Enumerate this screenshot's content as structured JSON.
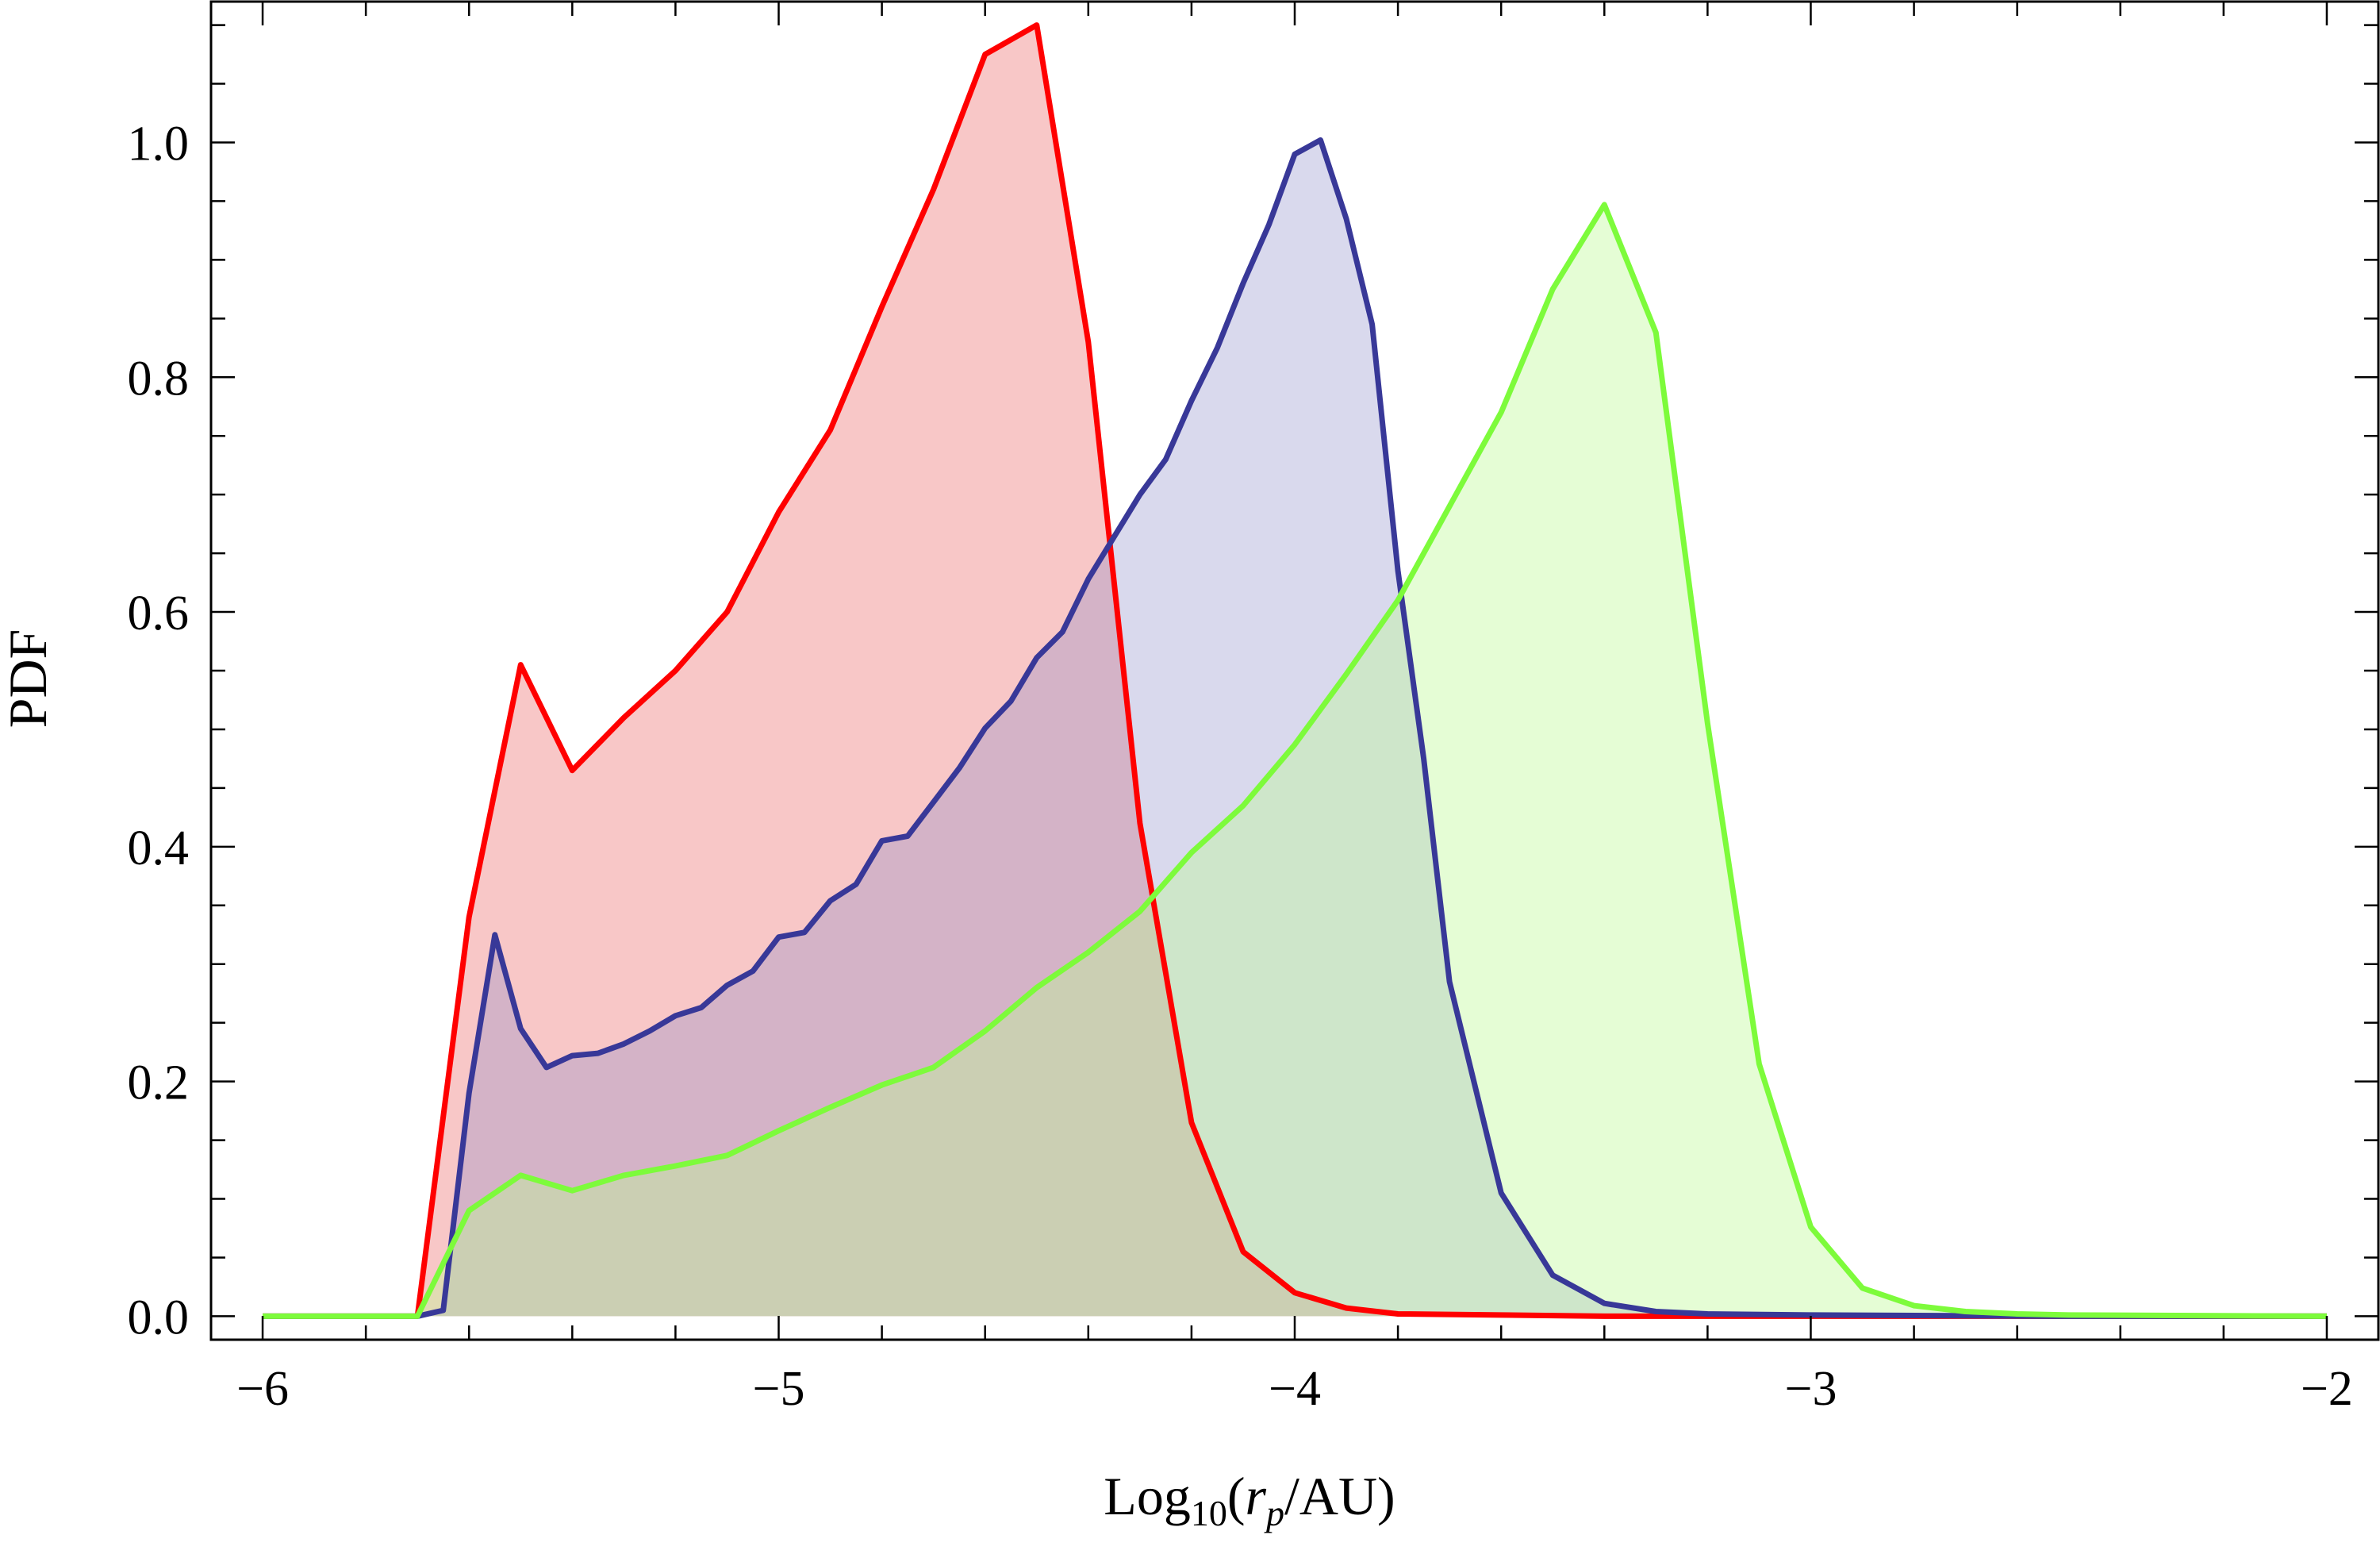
{
  "chart_data": {
    "type": "area",
    "xlabel": {
      "prefix": "Log",
      "subscript": "10",
      "open": "(",
      "var": "r",
      "var_subscript": "p",
      "unit": "/AU)"
    },
    "ylabel": "PDF",
    "xlim": [
      -6.1,
      -1.9
    ],
    "ylim": [
      -0.02,
      1.12
    ],
    "xticks": [
      -6,
      -5,
      -4,
      -3,
      -2
    ],
    "xtick_labels": [
      "−6",
      "−5",
      "−4",
      "−3",
      "−2"
    ],
    "yticks": [
      0.0,
      0.2,
      0.4,
      0.6,
      0.8,
      1.0
    ],
    "ytick_labels": [
      "0.0",
      "0.2",
      "0.4",
      "0.6",
      "0.8",
      "1.0"
    ],
    "minor_x_step": 0.2,
    "minor_y_step": 0.05,
    "grid": false,
    "legend": "none",
    "series": [
      {
        "color": "#ff0000",
        "fill": "rgba(239,130,130,0.45)",
        "x": [
          -6.0,
          -5.7,
          -5.6,
          -5.5,
          -5.4,
          -5.3,
          -5.2,
          -5.1,
          -5.0,
          -4.9,
          -4.8,
          -4.7,
          -4.6,
          -4.5,
          -4.4,
          -4.3,
          -4.2,
          -4.1,
          -4.0,
          -3.9,
          -3.8,
          -3.6,
          -3.4,
          -3.0,
          -2.5,
          -2.0
        ],
        "values": [
          0.0,
          0.0,
          0.34,
          0.555,
          0.465,
          0.51,
          0.55,
          0.6,
          0.685,
          0.755,
          0.86,
          0.96,
          1.075,
          1.1,
          0.83,
          0.42,
          0.165,
          0.055,
          0.02,
          0.007,
          0.002,
          0.001,
          0.0,
          0.0,
          0.0,
          0.0
        ]
      },
      {
        "color": "#383898",
        "fill": "rgba(140,140,200,0.33)",
        "x": [
          -6.0,
          -5.7,
          -5.65,
          -5.6,
          -5.55,
          -5.5,
          -5.45,
          -5.4,
          -5.35,
          -5.3,
          -5.25,
          -5.2,
          -5.15,
          -5.1,
          -5.05,
          -5.0,
          -4.95,
          -4.9,
          -4.85,
          -4.8,
          -4.75,
          -4.7,
          -4.65,
          -4.6,
          -4.55,
          -4.5,
          -4.45,
          -4.4,
          -4.35,
          -4.3,
          -4.25,
          -4.2,
          -4.15,
          -4.1,
          -4.05,
          -4.0,
          -3.95,
          -3.9,
          -3.85,
          -3.8,
          -3.75,
          -3.7,
          -3.6,
          -3.5,
          -3.45,
          -3.4,
          -3.3,
          -3.2,
          -3.0,
          -2.5,
          -2.0
        ],
        "values": [
          0.0,
          0.0,
          0.005,
          0.19,
          0.325,
          0.245,
          0.212,
          0.222,
          0.224,
          0.232,
          0.243,
          0.256,
          0.263,
          0.282,
          0.294,
          0.323,
          0.327,
          0.354,
          0.368,
          0.405,
          0.409,
          0.438,
          0.467,
          0.501,
          0.524,
          0.561,
          0.583,
          0.628,
          0.664,
          0.7,
          0.73,
          0.78,
          0.825,
          0.88,
          0.93,
          0.99,
          1.002,
          0.935,
          0.845,
          0.635,
          0.475,
          0.285,
          0.105,
          0.035,
          0.023,
          0.011,
          0.004,
          0.002,
          0.001,
          0.0,
          0.0
        ]
      },
      {
        "color": "#7dfb3b",
        "fill": "rgba(190,250,150,0.40)",
        "x": [
          -6.0,
          -5.7,
          -5.65,
          -5.6,
          -5.5,
          -5.4,
          -5.3,
          -5.2,
          -5.1,
          -5.0,
          -4.9,
          -4.8,
          -4.7,
          -4.6,
          -4.5,
          -4.4,
          -4.3,
          -4.2,
          -4.1,
          -4.0,
          -3.9,
          -3.8,
          -3.7,
          -3.6,
          -3.5,
          -3.4,
          -3.3,
          -3.2,
          -3.1,
          -3.0,
          -2.9,
          -2.8,
          -2.7,
          -2.6,
          -2.5,
          -2.0
        ],
        "values": [
          0.0,
          0.0,
          0.045,
          0.09,
          0.12,
          0.107,
          0.12,
          0.128,
          0.137,
          0.158,
          0.178,
          0.197,
          0.212,
          0.243,
          0.28,
          0.31,
          0.345,
          0.395,
          0.435,
          0.487,
          0.547,
          0.61,
          0.69,
          0.77,
          0.875,
          0.947,
          0.838,
          0.505,
          0.215,
          0.076,
          0.024,
          0.009,
          0.004,
          0.002,
          0.001,
          0.0
        ]
      }
    ]
  }
}
